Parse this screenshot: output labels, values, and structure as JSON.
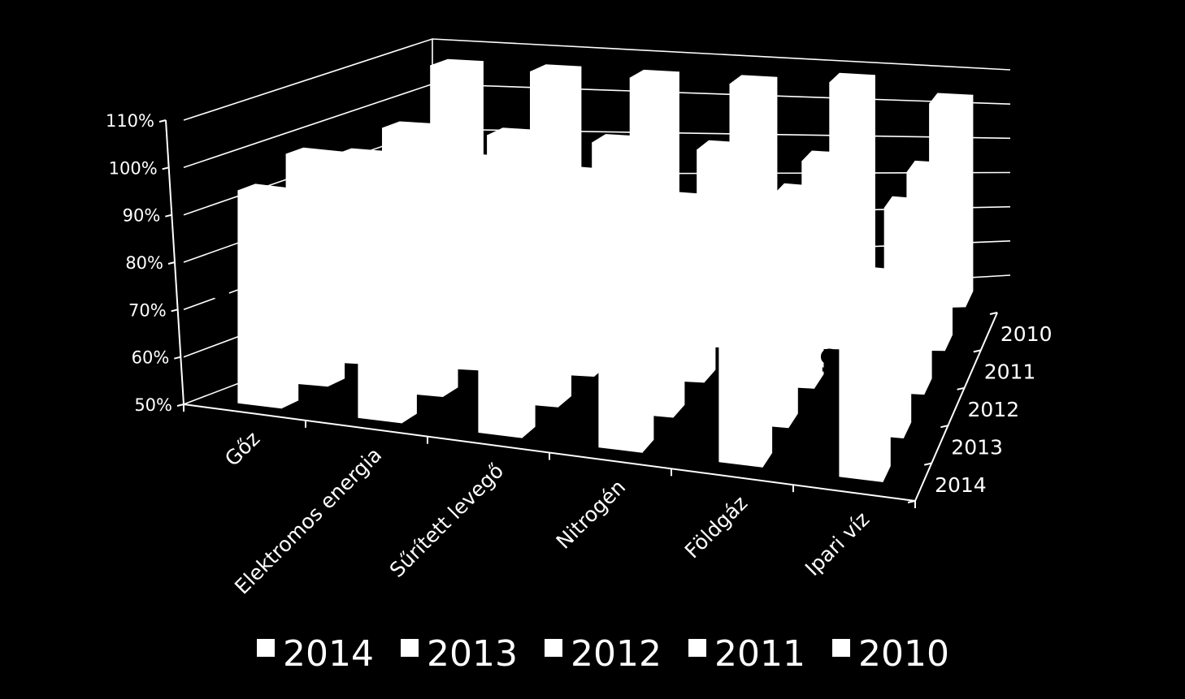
{
  "chart_data": {
    "type": "bar",
    "subtype": "3d-column",
    "title": "",
    "xlabel": "",
    "ylabel": "",
    "categories": [
      "Gőz",
      "Elektromos energia",
      "Sűrített levegő",
      "Nitrogén",
      "Földgáz",
      "Ipari víz"
    ],
    "y_ticks": [
      "50%",
      "60%",
      "70%",
      "80%",
      "90%",
      "100%",
      "110%"
    ],
    "ylim": [
      0.5,
      1.1
    ],
    "depth_labels": [
      "2010",
      "2011",
      "2012",
      "2013",
      "2014"
    ],
    "series": [
      {
        "name": "2014",
        "values": [
          0.95,
          0.95,
          0.96,
          0.92,
          0.93,
          0.86
        ]
      },
      {
        "name": "2013",
        "values": [
          0.99,
          0.93,
          0.96,
          0.94,
          0.96,
          0.85
        ]
      },
      {
        "name": "2012",
        "values": [
          0.95,
          0.96,
          0.95,
          0.91,
          0.95,
          0.94
        ]
      },
      {
        "name": "2011",
        "values": [
          0.97,
          0.97,
          0.97,
          0.97,
          0.96,
          0.95
        ]
      },
      {
        "name": "2010",
        "values": [
          1.07,
          1.07,
          1.07,
          1.07,
          1.09,
          1.05
        ]
      }
    ],
    "data_labels": [
      "9",
      "9"
    ],
    "legend": {
      "position": "bottom",
      "items": [
        "2014",
        "2013",
        "2012",
        "2011",
        "2010"
      ]
    },
    "grid": true,
    "colors": {
      "background": "#000000",
      "bars": "#ffffff",
      "axes": "#ffffff"
    }
  }
}
